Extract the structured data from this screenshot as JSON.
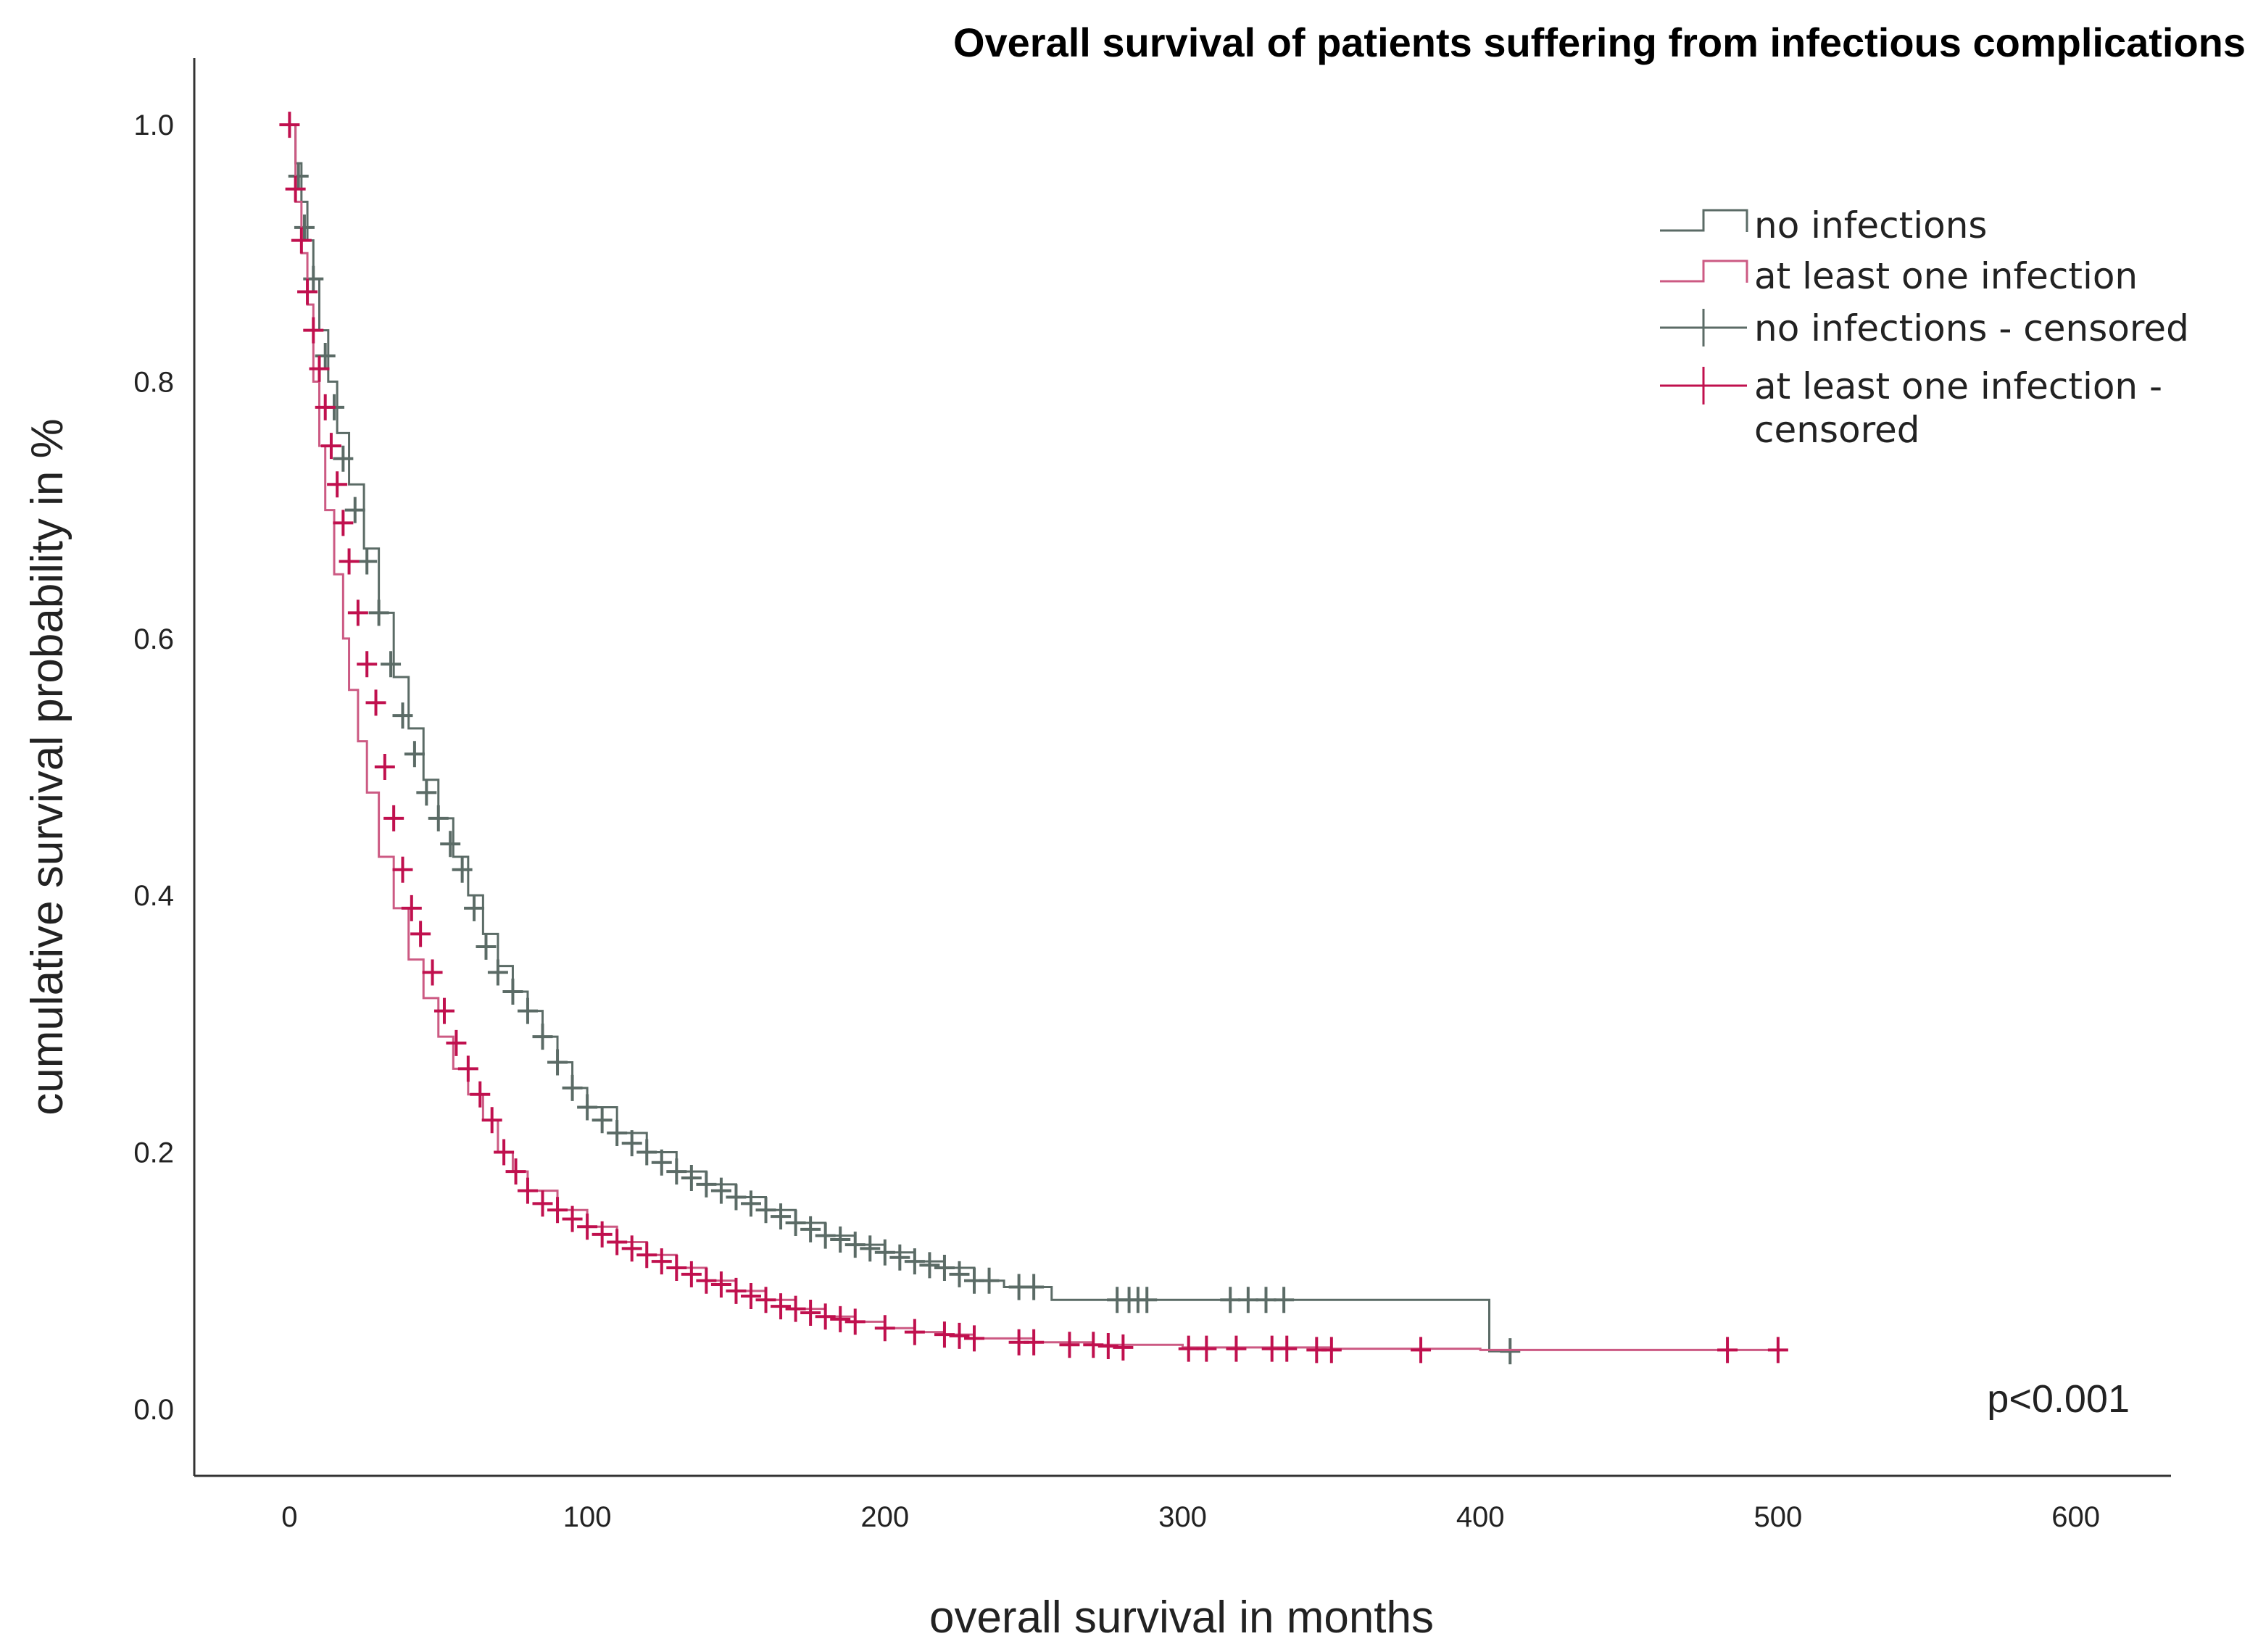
{
  "chart_data": {
    "type": "line",
    "title": "Overall survival of patients suffering from infectious complications",
    "xlabel": "overall survival in months",
    "ylabel": "cumulative survival probability in %",
    "xlim": [
      -32,
      632
    ],
    "ylim": [
      -0.052,
      1.052
    ],
    "xticks": [
      "0",
      "100",
      "200",
      "300",
      "400",
      "500",
      "600"
    ],
    "yticks": [
      "0.0",
      "0.2",
      "0.4",
      "0.6",
      "0.8",
      "1.0"
    ],
    "grid": false,
    "legend_position": "top-right",
    "annotation": "p<0.001",
    "legend": [
      {
        "label": "no infections",
        "kind": "line",
        "color": "#5b6b66"
      },
      {
        "label": "at least one infection",
        "kind": "line",
        "color": "#cc5a83"
      },
      {
        "label": "no infections - censored",
        "kind": "cross",
        "color": "#5b6b66"
      },
      {
        "label": "at least one infection -",
        "label2": "censored",
        "kind": "cross",
        "color": "#c0104e"
      }
    ],
    "series": [
      {
        "name": "no infections",
        "color": "#5b6b66",
        "marker_color": "#5b6b66",
        "x": [
          0,
          2,
          4,
          6,
          8,
          10,
          13,
          16,
          20,
          25,
          30,
          35,
          40,
          45,
          50,
          55,
          60,
          65,
          70,
          75,
          80,
          85,
          90,
          95,
          100,
          110,
          120,
          130,
          140,
          150,
          160,
          170,
          180,
          190,
          200,
          210,
          220,
          230,
          240,
          256,
          400,
          403,
          410
        ],
        "y": [
          1.0,
          0.97,
          0.94,
          0.91,
          0.88,
          0.84,
          0.8,
          0.76,
          0.72,
          0.67,
          0.62,
          0.57,
          0.53,
          0.49,
          0.46,
          0.43,
          0.4,
          0.37,
          0.345,
          0.325,
          0.31,
          0.29,
          0.27,
          0.25,
          0.235,
          0.215,
          0.2,
          0.185,
          0.175,
          0.165,
          0.155,
          0.145,
          0.135,
          0.128,
          0.122,
          0.115,
          0.11,
          0.1,
          0.095,
          0.085,
          0.085,
          0.045,
          0.045
        ],
        "censored_x": [
          3,
          5,
          8,
          12,
          15,
          18,
          22,
          26,
          30,
          34,
          38,
          42,
          46,
          50,
          54,
          58,
          62,
          66,
          70,
          75,
          80,
          85,
          90,
          95,
          100,
          105,
          110,
          115,
          120,
          125,
          130,
          135,
          140,
          145,
          150,
          155,
          160,
          165,
          170,
          175,
          180,
          185,
          190,
          195,
          200,
          205,
          210,
          215,
          220,
          225,
          230,
          235,
          245,
          250,
          278,
          282,
          285,
          288,
          316,
          322,
          328,
          334,
          410
        ],
        "censored_y": [
          0.96,
          0.92,
          0.88,
          0.82,
          0.78,
          0.74,
          0.7,
          0.66,
          0.62,
          0.58,
          0.54,
          0.51,
          0.48,
          0.46,
          0.44,
          0.42,
          0.39,
          0.36,
          0.34,
          0.325,
          0.31,
          0.29,
          0.27,
          0.25,
          0.235,
          0.225,
          0.215,
          0.207,
          0.2,
          0.192,
          0.185,
          0.18,
          0.175,
          0.17,
          0.165,
          0.16,
          0.155,
          0.15,
          0.145,
          0.14,
          0.135,
          0.132,
          0.128,
          0.125,
          0.122,
          0.118,
          0.115,
          0.112,
          0.11,
          0.105,
          0.1,
          0.1,
          0.095,
          0.095,
          0.085,
          0.085,
          0.085,
          0.085,
          0.085,
          0.085,
          0.085,
          0.085,
          0.045
        ]
      },
      {
        "name": "at least one infection",
        "color": "#cc5a83",
        "marker_color": "#c0104e",
        "x": [
          0,
          2,
          4,
          6,
          8,
          10,
          12,
          15,
          18,
          20,
          23,
          26,
          30,
          35,
          40,
          45,
          50,
          55,
          60,
          65,
          70,
          75,
          80,
          90,
          100,
          110,
          120,
          130,
          140,
          150,
          160,
          170,
          180,
          190,
          200,
          210,
          220,
          230,
          250,
          270,
          300,
          350,
          400,
          500
        ],
        "y": [
          1.0,
          0.94,
          0.9,
          0.86,
          0.8,
          0.75,
          0.7,
          0.65,
          0.6,
          0.56,
          0.52,
          0.48,
          0.43,
          0.39,
          0.35,
          0.32,
          0.29,
          0.265,
          0.245,
          0.225,
          0.2,
          0.185,
          0.17,
          0.155,
          0.142,
          0.13,
          0.12,
          0.11,
          0.1,
          0.092,
          0.085,
          0.078,
          0.072,
          0.068,
          0.063,
          0.06,
          0.058,
          0.055,
          0.052,
          0.05,
          0.048,
          0.047,
          0.046,
          0.046
        ],
        "censored_x": [
          0,
          2,
          4,
          6,
          8,
          10,
          12,
          14,
          16,
          18,
          20,
          23,
          26,
          29,
          32,
          35,
          38,
          41,
          44,
          48,
          52,
          56,
          60,
          64,
          68,
          72,
          76,
          80,
          85,
          90,
          95,
          100,
          105,
          110,
          115,
          120,
          125,
          130,
          135,
          140,
          145,
          150,
          155,
          160,
          165,
          170,
          175,
          180,
          185,
          190,
          200,
          210,
          220,
          225,
          230,
          245,
          250,
          262,
          270,
          275,
          280,
          302,
          308,
          318,
          330,
          335,
          345,
          350,
          380,
          483,
          500
        ],
        "censored_y": [
          1.0,
          0.95,
          0.91,
          0.87,
          0.84,
          0.81,
          0.78,
          0.75,
          0.72,
          0.69,
          0.66,
          0.62,
          0.58,
          0.55,
          0.5,
          0.46,
          0.42,
          0.39,
          0.37,
          0.34,
          0.31,
          0.285,
          0.265,
          0.245,
          0.225,
          0.2,
          0.185,
          0.17,
          0.16,
          0.155,
          0.148,
          0.142,
          0.136,
          0.13,
          0.125,
          0.12,
          0.115,
          0.11,
          0.105,
          0.1,
          0.097,
          0.092,
          0.088,
          0.085,
          0.08,
          0.078,
          0.075,
          0.072,
          0.07,
          0.068,
          0.063,
          0.06,
          0.058,
          0.057,
          0.055,
          0.052,
          0.052,
          0.05,
          0.05,
          0.049,
          0.048,
          0.047,
          0.047,
          0.047,
          0.047,
          0.047,
          0.046,
          0.046,
          0.046,
          0.046,
          0.046
        ]
      }
    ]
  }
}
